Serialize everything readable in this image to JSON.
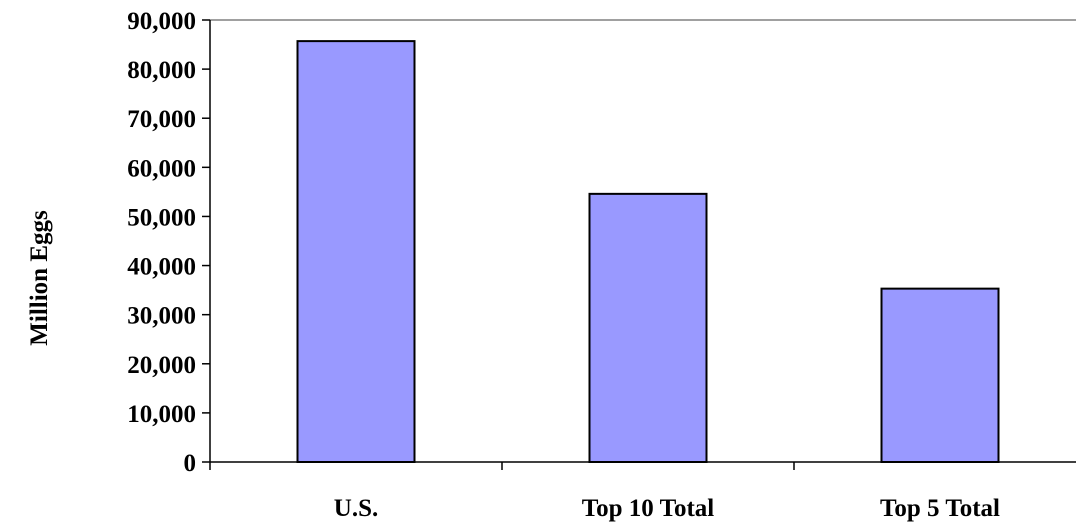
{
  "chart_data": {
    "type": "bar",
    "title": "",
    "xlabel": "",
    "ylabel": "Million Eggs",
    "categories": [
      "U.S.",
      "Top 10 Total",
      "Top 5 Total"
    ],
    "values": [
      85700,
      54600,
      35300
    ],
    "ylim": [
      0,
      90000
    ],
    "yticks": [
      0,
      10000,
      20000,
      30000,
      40000,
      50000,
      60000,
      70000,
      80000,
      90000
    ],
    "ytick_labels": [
      "0",
      "10,000",
      "20,000",
      "30,000",
      "40,000",
      "50,000",
      "60,000",
      "70,000",
      "80,000",
      "90,000"
    ],
    "grid": false,
    "legend": "none",
    "colors": {
      "bar_fill": "#9999ff",
      "bar_stroke": "#000000",
      "axis": "#000000",
      "frame": "#808080"
    }
  }
}
